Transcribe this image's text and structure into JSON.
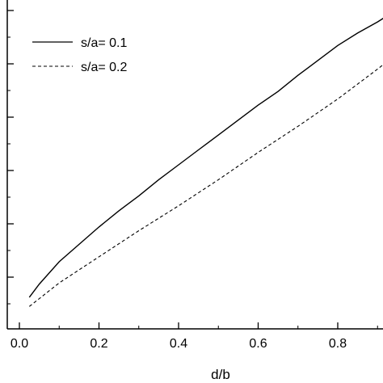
{
  "chart_data": {
    "type": "line",
    "xlabel": "d/b",
    "ylabel": "",
    "xlim": [
      0.0,
      0.92
    ],
    "x_ticks": [
      "0.0",
      "0.2",
      "0.4",
      "0.6",
      "0.8"
    ],
    "y_tick_count": 7,
    "grid": false,
    "legend_position": "top-left",
    "series": [
      {
        "name": "s/a= 0.1",
        "style": "solid",
        "color": "#000000",
        "x": [
          0.025,
          0.05,
          0.1,
          0.15,
          0.2,
          0.25,
          0.3,
          0.35,
          0.4,
          0.45,
          0.5,
          0.55,
          0.6,
          0.65,
          0.7,
          0.75,
          0.8,
          0.85,
          0.9,
          0.92
        ],
        "y": [
          0.062,
          0.115,
          0.205,
          0.275,
          0.345,
          0.41,
          0.47,
          0.535,
          0.595,
          0.655,
          0.715,
          0.775,
          0.835,
          0.89,
          0.955,
          1.015,
          1.075,
          1.125,
          1.17,
          1.19
        ]
      },
      {
        "name": "s/a= 0.2",
        "style": "dashed",
        "color": "#000000",
        "x": [
          0.025,
          0.1,
          0.2,
          0.3,
          0.4,
          0.5,
          0.6,
          0.7,
          0.8,
          0.9,
          0.92
        ],
        "y": [
          0.025,
          0.12,
          0.225,
          0.33,
          0.43,
          0.535,
          0.645,
          0.75,
          0.86,
          0.98,
          1.005
        ]
      }
    ]
  }
}
